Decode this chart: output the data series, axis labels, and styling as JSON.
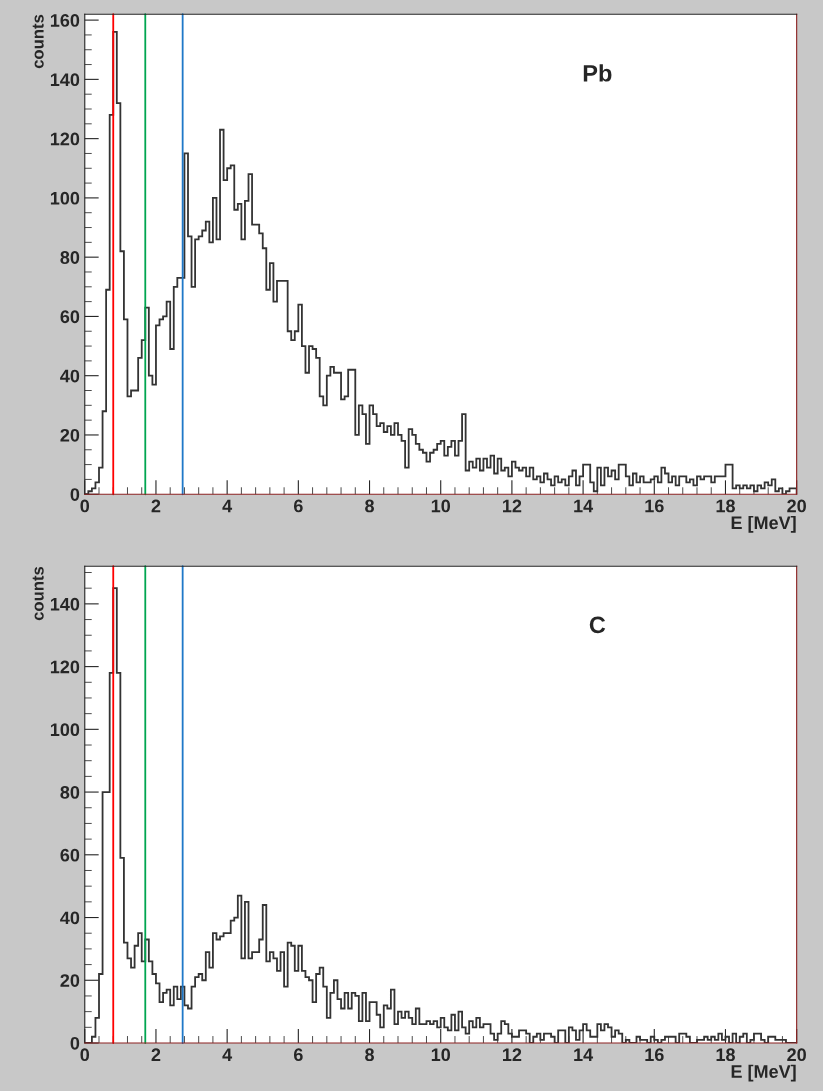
{
  "chart_data": [
    {
      "type": "histogram",
      "xlabel": "E [MeV]",
      "ylabel": "counts",
      "annotations": [
        "Pb"
      ],
      "bins": [
        0,
        0.1,
        0.2,
        0.3,
        0.4,
        0.5,
        0.6,
        0.7,
        0.8,
        0.9,
        1,
        1.1,
        1.2,
        1.3,
        1.4,
        1.5,
        1.6,
        1.7,
        1.8,
        1.9,
        2,
        2.1,
        2.2,
        2.3,
        2.4,
        2.5,
        2.6,
        2.7,
        2.8,
        2.9,
        3,
        3.1,
        3.2,
        3.3,
        3.4,
        3.5,
        3.6,
        3.7,
        3.8,
        3.9,
        4,
        4.1,
        4.2,
        4.3,
        4.4,
        4.5,
        4.6,
        4.7,
        4.8,
        4.9,
        5,
        5.1,
        5.2,
        5.3,
        5.4,
        5.5,
        5.6,
        5.7,
        5.8,
        5.9,
        6,
        6.1,
        6.2,
        6.3,
        6.4,
        6.5,
        6.6,
        6.7,
        6.8,
        6.9,
        7,
        7.1,
        7.2,
        7.3,
        7.4,
        7.5,
        7.6,
        7.7,
        7.8,
        7.9,
        8,
        8.1,
        8.2,
        8.3,
        8.4,
        8.5,
        8.6,
        8.7,
        8.8,
        8.9,
        9,
        9.1,
        9.2,
        9.3,
        9.4,
        9.5,
        9.6,
        9.7,
        9.8,
        9.9,
        10,
        10.1,
        10.2,
        10.3,
        10.4,
        10.5,
        10.6,
        10.7,
        10.8,
        10.9,
        11,
        11.1,
        11.2,
        11.3,
        11.4,
        11.5,
        11.6,
        11.7,
        11.8,
        11.9,
        12,
        12.1,
        12.2,
        12.3,
        12.4,
        12.5,
        12.6,
        12.7,
        12.8,
        12.9,
        13,
        13.1,
        13.2,
        13.3,
        13.4,
        13.5,
        13.6,
        13.7,
        13.8,
        13.9,
        14,
        14.1,
        14.2,
        14.3,
        14.4,
        14.5,
        14.6,
        14.7,
        14.8,
        14.9,
        15,
        15.1,
        15.2,
        15.3,
        15.4,
        15.5,
        15.6,
        15.7,
        15.8,
        15.9,
        16,
        16.1,
        16.2,
        16.3,
        16.4,
        16.5,
        16.6,
        16.7,
        16.8,
        16.9,
        17,
        17.1,
        17.2,
        17.3,
        17.4,
        17.5,
        17.6,
        17.7,
        17.8,
        17.9,
        18,
        18.1,
        18.2,
        18.3,
        18.4,
        18.5,
        18.6,
        18.7,
        18.8,
        18.9,
        19,
        19.1,
        19.2,
        19.3,
        19.4,
        19.5,
        19.6,
        19.7,
        19.8,
        19.9,
        20
      ],
      "series": [
        {
          "color": "#333333",
          "values": [
            0,
            1,
            2,
            4,
            9,
            28,
            69,
            128,
            156,
            132,
            82,
            59,
            33,
            35,
            35,
            46,
            52,
            63,
            40,
            37,
            57,
            59,
            60,
            65,
            49,
            70,
            73,
            73,
            115,
            87,
            70,
            86,
            87,
            89,
            92,
            85,
            100,
            86,
            123,
            106,
            110,
            111,
            96,
            98,
            86,
            99,
            108,
            91,
            91,
            88,
            83,
            69,
            78,
            65,
            72,
            72,
            72,
            55,
            52,
            55,
            64,
            50,
            41,
            50,
            49,
            46,
            33,
            30,
            40,
            43,
            41,
            41,
            32,
            33,
            42,
            42,
            20,
            30,
            27,
            17,
            30,
            27,
            23,
            24,
            21,
            23,
            20,
            24,
            20,
            18,
            9,
            22,
            20,
            17,
            15,
            14,
            11,
            14,
            15,
            17,
            18,
            13,
            16,
            18,
            13,
            18,
            27,
            8,
            11,
            9,
            12,
            8,
            12,
            9,
            13,
            7,
            12,
            8,
            9,
            6,
            11,
            9,
            8,
            9,
            6,
            9,
            5,
            6,
            4,
            7,
            5,
            3,
            6,
            4,
            5,
            3,
            6,
            8,
            3,
            6,
            10,
            10,
            4,
            1,
            9,
            3,
            9,
            6,
            8,
            5,
            10,
            10,
            6,
            3,
            7,
            4,
            6,
            4,
            4,
            5,
            6,
            4,
            9,
            7,
            4,
            6,
            3,
            6,
            6,
            4,
            5,
            3,
            6,
            5,
            6,
            6,
            4,
            6,
            6,
            6,
            10,
            10,
            2,
            3,
            2,
            3,
            2,
            3,
            1,
            3,
            2,
            4,
            3,
            5,
            1,
            2,
            0,
            1,
            2,
            2
          ]
        }
      ],
      "xlim": [
        0,
        20
      ],
      "xticks": [
        0,
        2,
        4,
        6,
        8,
        10,
        12,
        14,
        16,
        18,
        20
      ],
      "ylim": [
        0,
        162
      ],
      "yticks": [
        0,
        20,
        40,
        60,
        80,
        100,
        120,
        140,
        160
      ],
      "ref_lines": [
        {
          "axis": "x",
          "value": 0.8,
          "color": "#ff0000"
        },
        {
          "axis": "x",
          "value": 1.7,
          "color": "#00a550"
        },
        {
          "axis": "x",
          "value": 2.75,
          "color": "#1f78c8"
        }
      ]
    },
    {
      "type": "histogram",
      "xlabel": "E [MeV]",
      "ylabel": "counts",
      "annotations": [
        "C"
      ],
      "bins": [
        0,
        0.1,
        0.2,
        0.3,
        0.4,
        0.5,
        0.6,
        0.7,
        0.8,
        0.9,
        1,
        1.1,
        1.2,
        1.3,
        1.4,
        1.5,
        1.6,
        1.7,
        1.8,
        1.9,
        2,
        2.1,
        2.2,
        2.3,
        2.4,
        2.5,
        2.6,
        2.7,
        2.8,
        2.9,
        3,
        3.1,
        3.2,
        3.3,
        3.4,
        3.5,
        3.6,
        3.7,
        3.8,
        3.9,
        4,
        4.1,
        4.2,
        4.3,
        4.4,
        4.5,
        4.6,
        4.7,
        4.8,
        4.9,
        5,
        5.1,
        5.2,
        5.3,
        5.4,
        5.5,
        5.6,
        5.7,
        5.8,
        5.9,
        6,
        6.1,
        6.2,
        6.3,
        6.4,
        6.5,
        6.6,
        6.7,
        6.8,
        6.9,
        7,
        7.1,
        7.2,
        7.3,
        7.4,
        7.5,
        7.6,
        7.7,
        7.8,
        7.9,
        8,
        8.1,
        8.2,
        8.3,
        8.4,
        8.5,
        8.6,
        8.7,
        8.8,
        8.9,
        9,
        9.1,
        9.2,
        9.3,
        9.4,
        9.5,
        9.6,
        9.7,
        9.8,
        9.9,
        10,
        10.1,
        10.2,
        10.3,
        10.4,
        10.5,
        10.6,
        10.7,
        10.8,
        10.9,
        11,
        11.1,
        11.2,
        11.3,
        11.4,
        11.5,
        11.6,
        11.7,
        11.8,
        11.9,
        12,
        12.1,
        12.2,
        12.3,
        12.4,
        12.5,
        12.6,
        12.7,
        12.8,
        12.9,
        13,
        13.1,
        13.2,
        13.3,
        13.4,
        13.5,
        13.6,
        13.7,
        13.8,
        13.9,
        14,
        14.1,
        14.2,
        14.3,
        14.4,
        14.5,
        14.6,
        14.7,
        14.8,
        14.9,
        15,
        15.1,
        15.2,
        15.3,
        15.4,
        15.5,
        15.6,
        15.7,
        15.8,
        15.9,
        16,
        16.1,
        16.2,
        16.3,
        16.4,
        16.5,
        16.6,
        16.7,
        16.8,
        16.9,
        17,
        17.1,
        17.2,
        17.3,
        17.4,
        17.5,
        17.6,
        17.7,
        17.8,
        17.9,
        18,
        18.1,
        18.2,
        18.3,
        18.4,
        18.5,
        18.6,
        18.7,
        18.8,
        18.9,
        19,
        19.1,
        19.2,
        19.3,
        19.4,
        19.5,
        19.6,
        19.7,
        19.8,
        19.9,
        20
      ],
      "series": [
        {
          "color": "#333333",
          "values": [
            0,
            0,
            2,
            8,
            22,
            80,
            80,
            118,
            145,
            118,
            59,
            32,
            27,
            24,
            31,
            35,
            26,
            33,
            26,
            22,
            19,
            13,
            16,
            17,
            12,
            18,
            14,
            18,
            12,
            11,
            18,
            21,
            22,
            20,
            29,
            24,
            35,
            33,
            34,
            35,
            35,
            39,
            40,
            47,
            27,
            45,
            27,
            29,
            29,
            33,
            44,
            26,
            29,
            27,
            23,
            29,
            18,
            32,
            31,
            23,
            31,
            23,
            21,
            20,
            13,
            22,
            24,
            18,
            8,
            16,
            20,
            14,
            11,
            16,
            11,
            16,
            15,
            7,
            16,
            7,
            13,
            13,
            9,
            5,
            12,
            11,
            17,
            6,
            10,
            8,
            10,
            8,
            6,
            11,
            6,
            6,
            7,
            6,
            7,
            5,
            8,
            5,
            4,
            9,
            4,
            10,
            5,
            3,
            7,
            5,
            8,
            5,
            6,
            6,
            3,
            1,
            3,
            7,
            6,
            3,
            2,
            2,
            4,
            4,
            3,
            0,
            2,
            3,
            1,
            3,
            3,
            2,
            0,
            4,
            4,
            0,
            5,
            4,
            1,
            4,
            6,
            4,
            2,
            2,
            6,
            4,
            6,
            5,
            2,
            4,
            3,
            0,
            1,
            0,
            0,
            2,
            1,
            1,
            0,
            2,
            1,
            0,
            1,
            2,
            2,
            2,
            0,
            3,
            3,
            2,
            0,
            0,
            1,
            1,
            2,
            1,
            2,
            1,
            3,
            1,
            2,
            0,
            3,
            0,
            2,
            3,
            0,
            1,
            3,
            3,
            1,
            0,
            2,
            2,
            1,
            1,
            1,
            0,
            0,
            0
          ]
        }
      ],
      "xlim": [
        0,
        20
      ],
      "xticks": [
        0,
        2,
        4,
        6,
        8,
        10,
        12,
        14,
        16,
        18,
        20
      ],
      "ylim": [
        0,
        152
      ],
      "yticks": [
        0,
        20,
        40,
        60,
        80,
        100,
        120,
        140
      ],
      "ref_lines": [
        {
          "axis": "x",
          "value": 0.8,
          "color": "#ff0000"
        },
        {
          "axis": "x",
          "value": 1.7,
          "color": "#00a550"
        },
        {
          "axis": "x",
          "value": 2.75,
          "color": "#1f78c8"
        }
      ]
    }
  ]
}
